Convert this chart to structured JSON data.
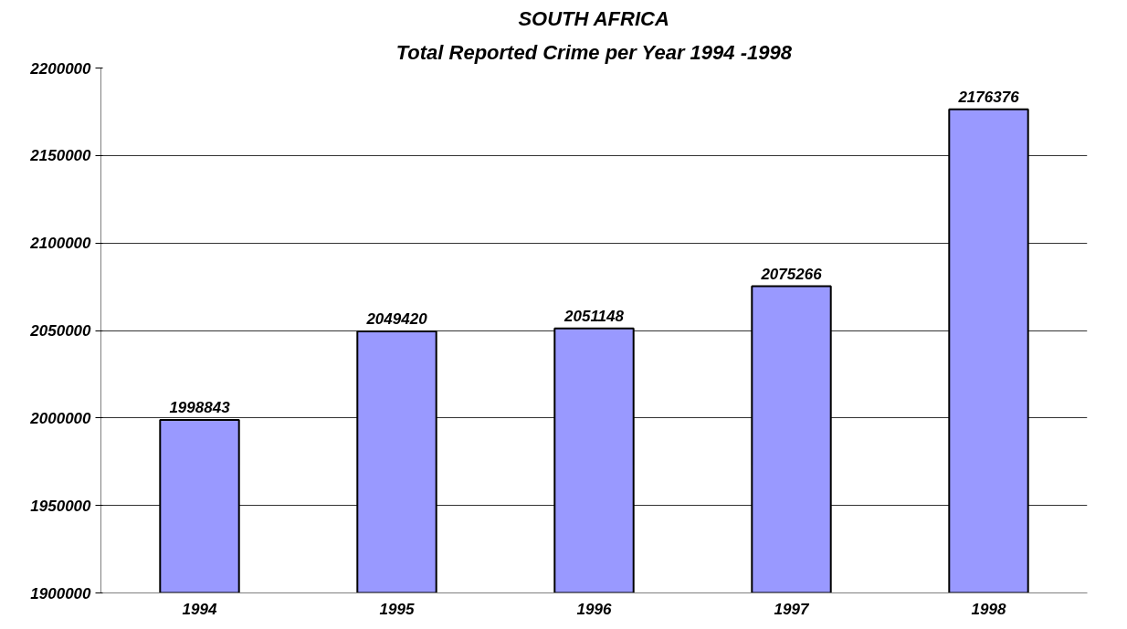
{
  "chart_data": {
    "type": "bar",
    "title": "SOUTH AFRICA",
    "subtitle": "Total Reported Crime per Year 1994 -1998",
    "categories": [
      "1994",
      "1995",
      "1996",
      "1997",
      "1998"
    ],
    "values": [
      1998843,
      2049420,
      2051148,
      2075266,
      2176376
    ],
    "color": "#9999ff",
    "ylim": [
      1900000,
      2200000
    ],
    "yticks": [
      1900000,
      1950000,
      2000000,
      2050000,
      2100000,
      2150000,
      2200000
    ],
    "grid": "y",
    "data_labels": true
  }
}
